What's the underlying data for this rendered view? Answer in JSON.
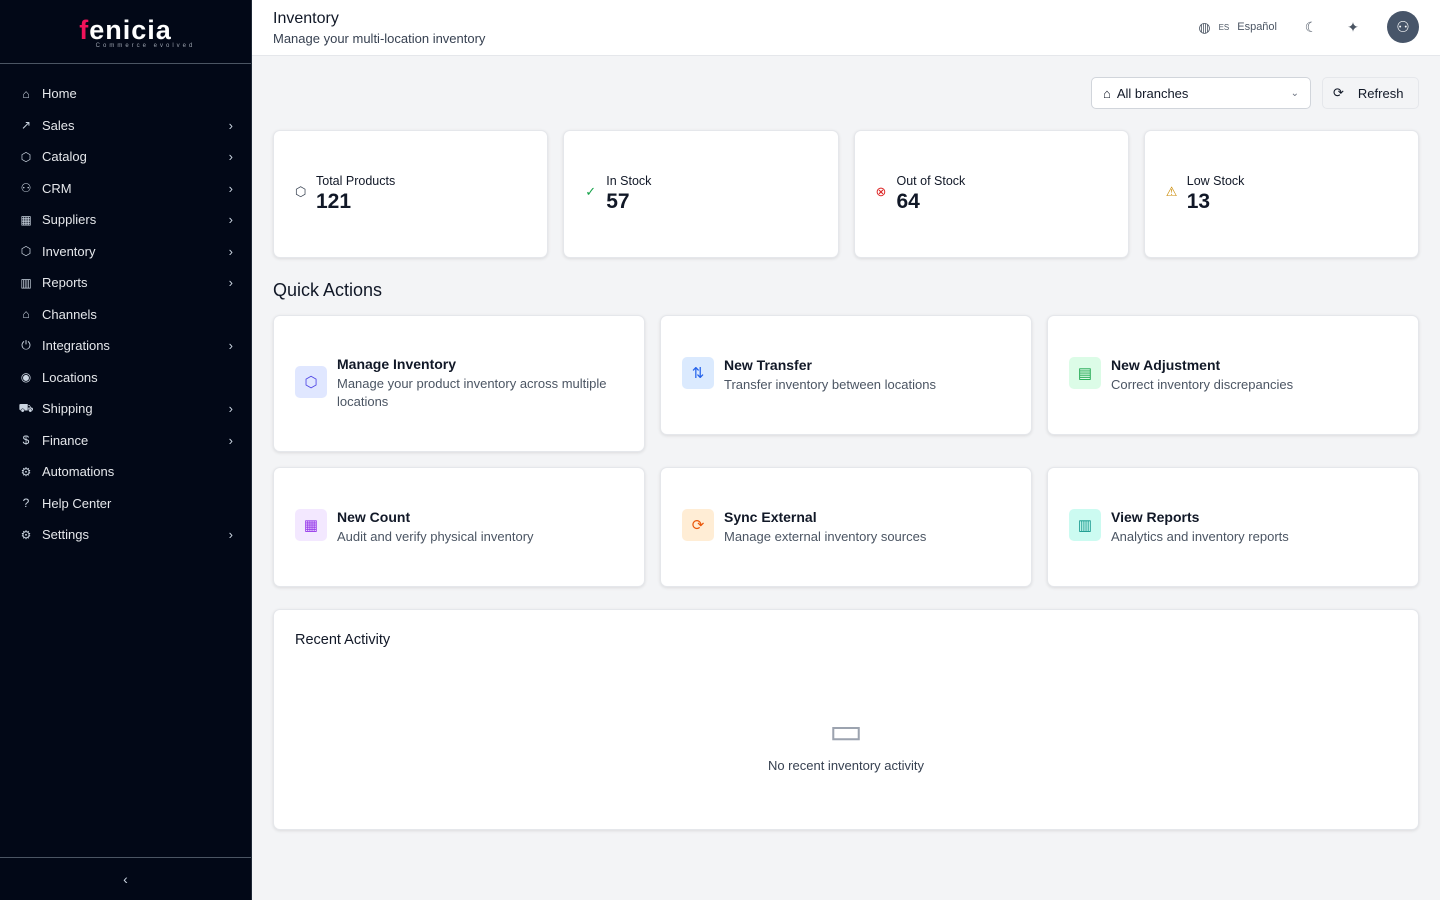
{
  "brand": {
    "name_first": "f",
    "name_rest": "enicia",
    "tagline": "Commerce evolved",
    "accent": "#f0125a"
  },
  "sidebar": {
    "items": [
      {
        "label": "Home",
        "icon": "⌂",
        "chev": false
      },
      {
        "label": "Sales",
        "icon": "↗",
        "chev": true
      },
      {
        "label": "Catalog",
        "icon": "⬡",
        "chev": true
      },
      {
        "label": "CRM",
        "icon": "⚇",
        "chev": true
      },
      {
        "label": "Suppliers",
        "icon": "▦",
        "chev": true
      },
      {
        "label": "Inventory",
        "icon": "⬡",
        "chev": true
      },
      {
        "label": "Reports",
        "icon": "▥",
        "chev": true
      },
      {
        "label": "Channels",
        "icon": "⌂",
        "chev": false
      },
      {
        "label": "Integrations",
        "icon": "⏻",
        "chev": true
      },
      {
        "label": "Locations",
        "icon": "◉",
        "chev": false
      },
      {
        "label": "Shipping",
        "icon": "⛟",
        "chev": true
      },
      {
        "label": "Finance",
        "icon": "$",
        "chev": true
      },
      {
        "label": "Automations",
        "icon": "⚙",
        "chev": false
      },
      {
        "label": "Help Center",
        "icon": "?",
        "chev": false
      },
      {
        "label": "Settings",
        "icon": "⚙",
        "chev": true
      }
    ],
    "collapse_icon": "‹"
  },
  "header": {
    "title": "Inventory",
    "subtitle": "Manage your multi-location inventory",
    "lang_code": "ES",
    "lang_label": "Español"
  },
  "toolbar": {
    "branch": "All branches",
    "refresh": "Refresh"
  },
  "stats": [
    {
      "label": "Total Products",
      "value": "121",
      "icon": "⬡",
      "color": "#374151"
    },
    {
      "label": "In Stock",
      "value": "57",
      "icon": "✓",
      "color": "#16a34a"
    },
    {
      "label": "Out of Stock",
      "value": "64",
      "icon": "⊗",
      "color": "#dc2626"
    },
    {
      "label": "Low Stock",
      "value": "13",
      "icon": "⚠",
      "color": "#ca8a04"
    }
  ],
  "quick_actions": {
    "title": "Quick Actions",
    "items": [
      {
        "title": "Manage Inventory",
        "desc": "Manage your product inventory across multiple locations",
        "icon": "⬡",
        "fg": "#4f46e5",
        "bg": "#e0e7ff"
      },
      {
        "title": "New Transfer",
        "desc": "Transfer inventory between locations",
        "icon": "⇅",
        "fg": "#2563eb",
        "bg": "#dbeafe"
      },
      {
        "title": "New Adjustment",
        "desc": "Correct inventory discrepancies",
        "icon": "▤",
        "fg": "#16a34a",
        "bg": "#dcfce7"
      },
      {
        "title": "New Count",
        "desc": "Audit and verify physical inventory",
        "icon": "▦",
        "fg": "#9333ea",
        "bg": "#f3e8ff"
      },
      {
        "title": "Sync External",
        "desc": "Manage external inventory sources",
        "icon": "⟳",
        "fg": "#ea580c",
        "bg": "#ffedd5"
      },
      {
        "title": "View Reports",
        "desc": "Analytics and inventory reports",
        "icon": "▥",
        "fg": "#0d9488",
        "bg": "#ccfbf1"
      }
    ]
  },
  "recent": {
    "title": "Recent Activity",
    "empty": "No recent inventory activity"
  }
}
